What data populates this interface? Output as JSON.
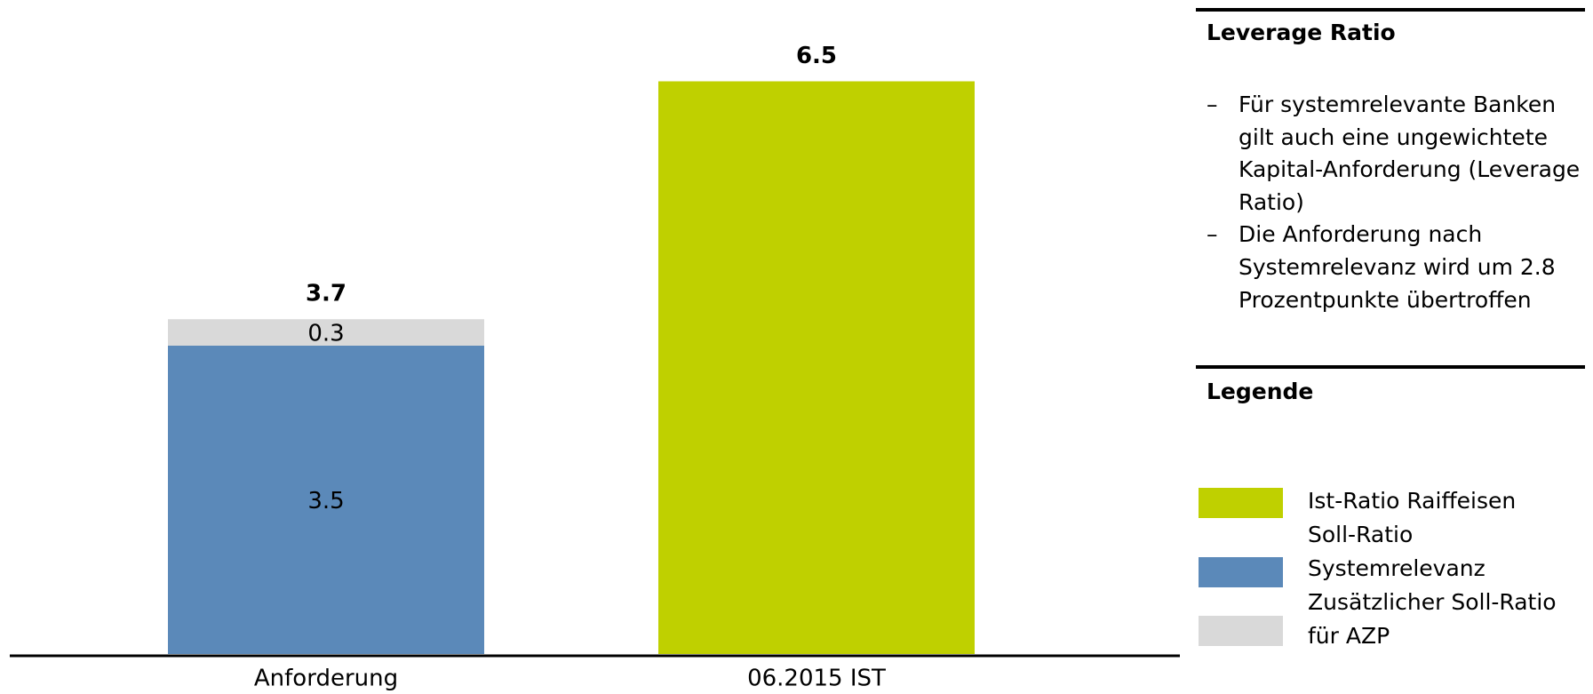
{
  "chart_data": {
    "type": "stacked_bar",
    "categories": [
      "Anforderung",
      "06.2015 IST"
    ],
    "series": [
      {
        "name": "Ist-Ratio Raiffeisen",
        "color": "#bfd000",
        "values": [
          null,
          6.5
        ]
      },
      {
        "name": "Soll-Ratio Systemrelevanz",
        "color": "#5b89b9",
        "values": [
          3.5,
          null
        ]
      },
      {
        "name": "Zusätzlicher Soll-Ratio für AZP",
        "color": "#d9d9d9",
        "values": [
          0.3,
          null
        ]
      }
    ],
    "totals": [
      3.7,
      6.5
    ],
    "ylim": [
      0,
      6.5
    ]
  },
  "panel": {
    "title": "Leverage Ratio",
    "bullets": [
      "Für systemrelevante Banken gilt auch eine ungewichtete Kapital-Anforderung (Leverage Ratio)",
      "Die Anforderung nach Systemrelevanz wird um 2.8 Prozentpunkte übertroffen"
    ],
    "legend_title": "Legende"
  }
}
